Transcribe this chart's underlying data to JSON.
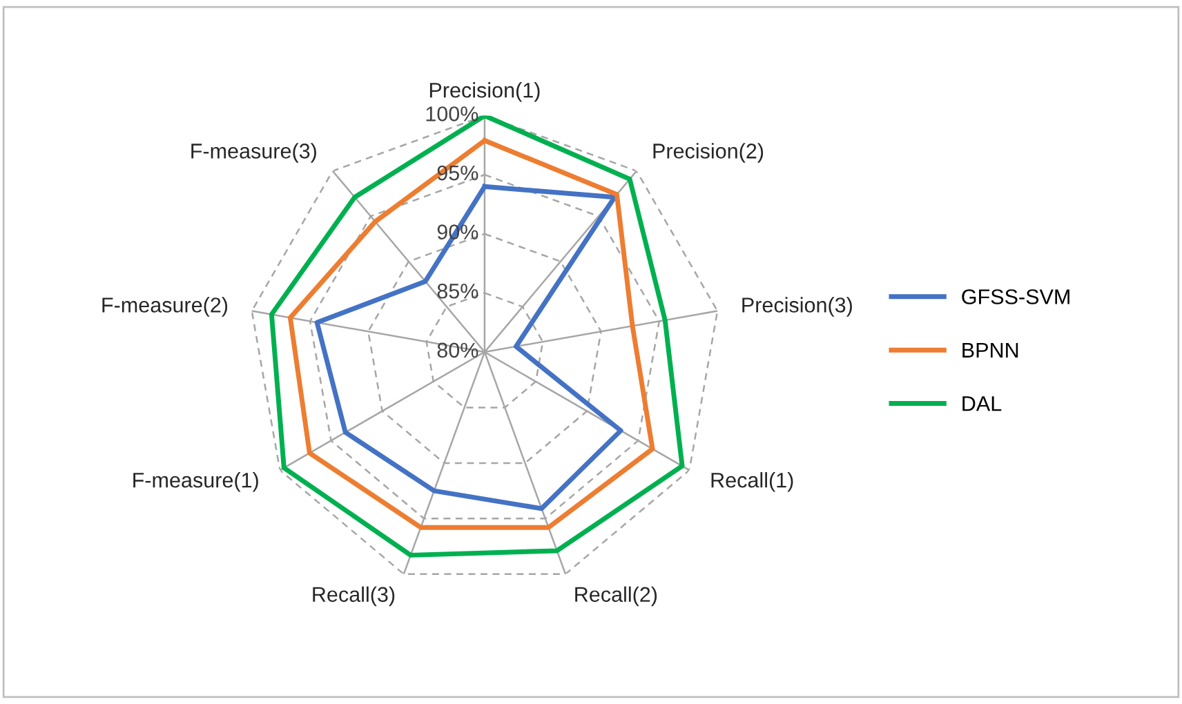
{
  "chart_data": {
    "type": "radar",
    "categories": [
      "Precision(1)",
      "Precision(2)",
      "Precision(3)",
      "Recall(1)",
      "Recall(2)",
      "Recall(3)",
      "F-measure(1)",
      "F-measure(2)",
      "F-measure(3)"
    ],
    "series": [
      {
        "name": "GFSS-SVM",
        "color": "#4472c4",
        "values": [
          94,
          97.1,
          82.7,
          93.3,
          94.1,
          92.5,
          93.6,
          94.4,
          87.8
        ]
      },
      {
        "name": "BPNN",
        "color": "#ed7d31",
        "values": [
          97.9,
          97.4,
          92.7,
          96.4,
          95.8,
          95.8,
          97.1,
          96.7,
          94.4
        ]
      },
      {
        "name": "DAL",
        "color": "#00b050",
        "values": [
          100,
          99.1,
          95.5,
          99.3,
          97.9,
          98.3,
          99.6,
          98.3,
          97.1
        ]
      }
    ],
    "ylim": [
      80,
      100
    ],
    "yticks": [
      {
        "value": 80,
        "label": "80%"
      },
      {
        "value": 85,
        "label": "85%"
      },
      {
        "value": 90,
        "label": "90%"
      },
      {
        "value": 95,
        "label": "95%"
      },
      {
        "value": 100,
        "label": "100%"
      }
    ],
    "grid": true,
    "legend": "right",
    "marker": "none",
    "line_style": "solid"
  }
}
